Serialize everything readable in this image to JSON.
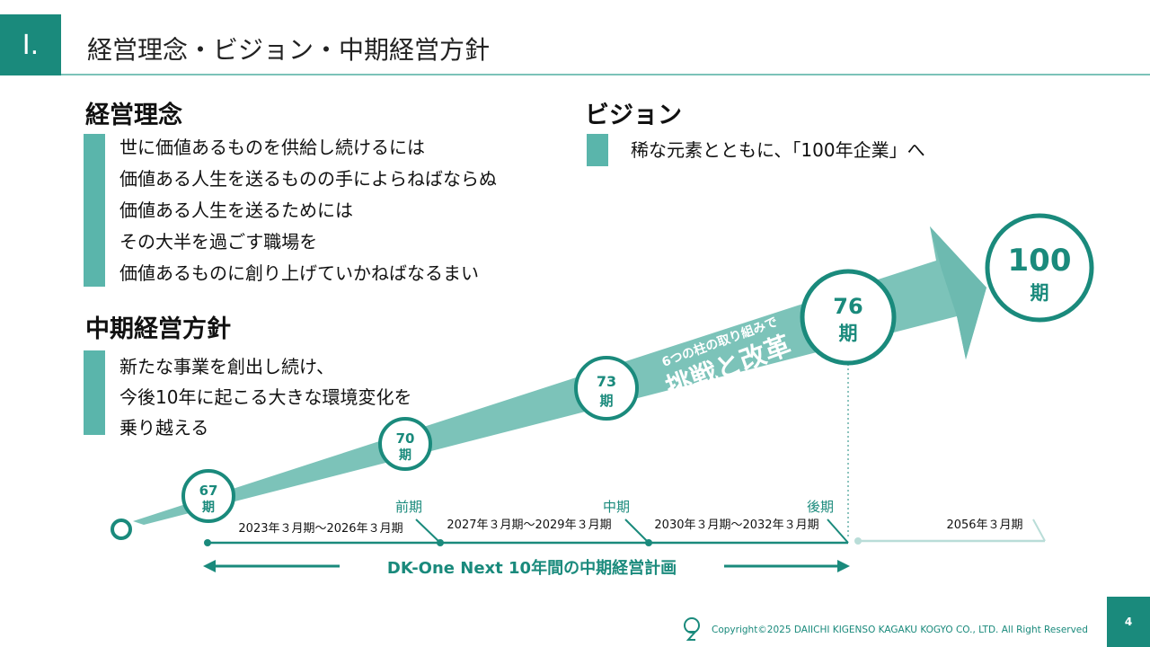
{
  "header": {
    "section_label": "Ⅰ.",
    "title": "経営理念・ビジョン・中期経営方針"
  },
  "philosophy": {
    "heading": "経営理念",
    "lines": [
      "世に価値あるものを供給し続けるには",
      "価値ある人生を送るものの手によらねばならぬ",
      "価値ある人生を送るためには",
      "その大半を過ごす職場を",
      "価値あるものに創り上げていかねばなるまい"
    ]
  },
  "vision": {
    "heading": "ビジョン",
    "text": "稀な元素とともに、「100年企業」へ"
  },
  "policy": {
    "heading": "中期経営方針",
    "lines": [
      "新たな事業を創出し続け、",
      "今後10年に起こる大きな環境変化を",
      "乗り越える"
    ]
  },
  "roadmap": {
    "arrow_subtitle": "6つの柱の取り組みで",
    "arrow_title": "挑戦と改革",
    "milestones": [
      {
        "number": "67",
        "unit": "期"
      },
      {
        "number": "70",
        "unit": "期"
      },
      {
        "number": "73",
        "unit": "期"
      },
      {
        "number": "76",
        "unit": "期"
      },
      {
        "number": "100",
        "unit": "期"
      }
    ],
    "phases": [
      {
        "name": "前期",
        "period": "2023年３月期～2026年３月期"
      },
      {
        "name": "中期",
        "period": "2027年３月期～2029年３月期"
      },
      {
        "name": "後期",
        "period": "2030年３月期～2032年３月期"
      }
    ],
    "final_period": "2056年３月期",
    "plan_label": "DK-One Next 10年間の中期経営計画"
  },
  "footer": {
    "copyright": "Copyright©2025 DAIICHI KIGENSO KAGAKU KOGYO CO., LTD. All Right Reserved",
    "page_number": "4"
  },
  "colors": {
    "brand": "#1a8a7c",
    "accent": "#5ab5ab",
    "arrow": "#7cc3b9"
  }
}
